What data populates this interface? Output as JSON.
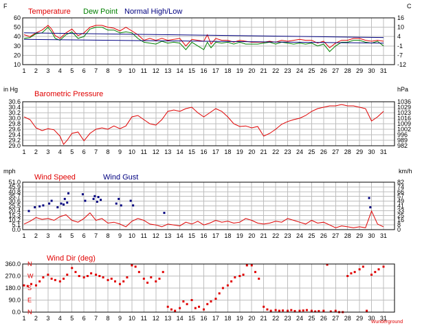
{
  "colors": {
    "red": "#e00000",
    "green": "#008000",
    "navy": "#000080",
    "blue": "#00007f"
  },
  "chart_data": [
    {
      "type": "line",
      "legend": [
        "Temperature",
        "Dew Point",
        "Normal High/Low"
      ],
      "ylabel_left": "F",
      "ylabel_right": "C",
      "yticks_left": [
        "60",
        "50",
        "40",
        "30",
        "20",
        "10"
      ],
      "yticks_right": [
        "16",
        "10",
        "4",
        "-1",
        "-7",
        "-12"
      ],
      "xticks": [
        "1",
        "2",
        "3",
        "4",
        "5",
        "6",
        "7",
        "8",
        "9",
        "10",
        "11",
        "12",
        "13",
        "14",
        "15",
        "16",
        "17",
        "18",
        "19",
        "20",
        "21",
        "22",
        "23",
        "24",
        "25",
        "26",
        "27",
        "28",
        "29",
        "30",
        "31"
      ],
      "ylim": [
        10,
        60
      ],
      "grid": true,
      "series": [
        {
          "name": "Temperature",
          "color": "#e00000",
          "x": [
            1,
            1.5,
            2,
            2.5,
            3,
            3.3,
            3.6,
            4,
            4.5,
            5,
            5.5,
            6,
            6.5,
            7,
            7.5,
            8,
            8.5,
            9,
            9.5,
            10,
            10.5,
            11,
            11.5,
            12,
            12.5,
            13,
            13.5,
            14,
            14.5,
            15,
            15.5,
            16,
            16.3,
            16.6,
            17,
            17.5,
            18,
            18.5,
            19,
            19.5,
            20,
            20.5,
            21,
            21.5,
            22,
            22.5,
            23,
            23.5,
            24,
            24.5,
            25,
            25.5,
            26,
            26.5,
            27,
            27.5,
            28,
            28.5,
            29,
            29.5,
            30,
            30.5,
            31
          ],
          "values": [
            42,
            40,
            44,
            47,
            52,
            48,
            41,
            38,
            44,
            48,
            41,
            44,
            50,
            52,
            52,
            50,
            49,
            46,
            50,
            46,
            42,
            36,
            38,
            36,
            38,
            36,
            37,
            38,
            30,
            37,
            36,
            35,
            42,
            32,
            38,
            36,
            36,
            34,
            36,
            35,
            34,
            34,
            34,
            35,
            34,
            36,
            35,
            36,
            37,
            36,
            36,
            33,
            35,
            28,
            33,
            36,
            36,
            38,
            38,
            36,
            35,
            36,
            35
          ]
        },
        {
          "name": "Dew Point",
          "color": "#008000",
          "x": [
            1,
            1.5,
            2,
            2.5,
            3,
            3.3,
            3.6,
            4,
            4.5,
            5,
            5.5,
            6,
            6.5,
            7,
            7.5,
            8,
            8.5,
            9,
            9.5,
            10,
            10.5,
            11,
            11.5,
            12,
            12.5,
            13,
            13.5,
            14,
            14.5,
            15,
            15.5,
            16,
            16.3,
            16.6,
            17,
            17.5,
            18,
            18.5,
            19,
            19.5,
            20,
            20.5,
            21,
            21.5,
            22,
            22.5,
            23,
            23.5,
            24,
            24.5,
            25,
            25.5,
            26,
            26.5,
            27,
            27.5,
            28,
            28.5,
            29,
            29.5,
            30,
            30.5,
            31
          ],
          "values": [
            38,
            39,
            43,
            44,
            50,
            45,
            38,
            36,
            42,
            45,
            38,
            40,
            48,
            50,
            50,
            47,
            47,
            44,
            45,
            44,
            38,
            34,
            33,
            32,
            35,
            33,
            34,
            33,
            26,
            34,
            30,
            26,
            34,
            28,
            34,
            33,
            34,
            32,
            34,
            32,
            32,
            32,
            33,
            34,
            32,
            34,
            33,
            32,
            33,
            32,
            33,
            30,
            32,
            24,
            30,
            34,
            34,
            36,
            36,
            34,
            33,
            35,
            30
          ]
        },
        {
          "name": "Normal High",
          "color": "#000080",
          "x": [
            1,
            31
          ],
          "values": [
            44,
            39
          ]
        },
        {
          "name": "Normal Low",
          "color": "#000080",
          "x": [
            1,
            31
          ],
          "values": [
            37,
            33
          ]
        }
      ]
    },
    {
      "type": "line",
      "title": "Barometric Pressure",
      "ylabel_left": "in Hg",
      "ylabel_right": "hPa",
      "yticks_left": [
        "30.6",
        "30.4",
        "30.2",
        "30.0",
        "29.8",
        "29.6",
        "29.4",
        "29.2",
        "29.0"
      ],
      "yticks_right": [
        "1036",
        "1029",
        "1023",
        "1016",
        "1009",
        "1002",
        "996",
        "989",
        "982"
      ],
      "xticks": [
        "1",
        "2",
        "3",
        "4",
        "5",
        "6",
        "7",
        "8",
        "9",
        "10",
        "11",
        "12",
        "13",
        "14",
        "15",
        "16",
        "17",
        "18",
        "19",
        "20",
        "21",
        "22",
        "23",
        "24",
        "25",
        "26",
        "27",
        "28",
        "29",
        "30",
        "31"
      ],
      "ylim": [
        29.0,
        30.6
      ],
      "grid": true,
      "series": [
        {
          "name": "Barometric Pressure",
          "color": "#e00000",
          "x": [
            1,
            1.5,
            2,
            2.5,
            3,
            3.5,
            4,
            4.3,
            4.6,
            5,
            5.5,
            6,
            6.5,
            7,
            7.5,
            8,
            8.5,
            9,
            9.5,
            10,
            10.5,
            11,
            11.5,
            12,
            12.5,
            13,
            13.5,
            14,
            14.5,
            15,
            15.5,
            16,
            16.5,
            17,
            17.5,
            18,
            18.5,
            19,
            19.5,
            20,
            20.5,
            21,
            21.5,
            22,
            22.5,
            23,
            23.5,
            24,
            24.5,
            25,
            25.5,
            26,
            26.5,
            27,
            27.5,
            28,
            28.5,
            29,
            29.5,
            30,
            30.5,
            31
          ],
          "values": [
            30.05,
            29.95,
            29.65,
            29.55,
            29.62,
            29.58,
            29.35,
            29.05,
            29.2,
            29.45,
            29.5,
            29.18,
            29.45,
            29.6,
            29.65,
            29.6,
            29.72,
            29.62,
            29.72,
            30.05,
            30.1,
            29.95,
            29.8,
            29.75,
            29.95,
            30.25,
            30.3,
            30.25,
            30.35,
            30.4,
            30.2,
            30.05,
            30.2,
            30.35,
            30.25,
            30.05,
            29.8,
            29.7,
            29.72,
            29.65,
            29.7,
            29.35,
            29.45,
            29.6,
            29.78,
            29.88,
            29.95,
            30.0,
            30.1,
            30.25,
            30.35,
            30.4,
            30.45,
            30.45,
            30.5,
            30.45,
            30.45,
            30.4,
            30.35,
            29.9,
            30.05,
            30.25
          ]
        }
      ]
    },
    {
      "type": "scatter",
      "title": "Wind Speed",
      "legend": [
        "Wind Speed",
        "Wind Gust"
      ],
      "ylabel_left": "mph",
      "ylabel_right": "km/h",
      "yticks_left": [
        "51.0",
        "45.9",
        "40.8",
        "35.7",
        "30.6",
        "25.5",
        "20.4",
        "15.3",
        "10.2",
        "5.1",
        "0.0"
      ],
      "yticks_right": [
        "82",
        "74",
        "66",
        "57",
        "49",
        "41",
        "33",
        "25",
        "16",
        "8",
        "0"
      ],
      "xticks": [
        "1",
        "2",
        "3",
        "4",
        "5",
        "6",
        "7",
        "8",
        "9",
        "10",
        "11",
        "12",
        "13",
        "14",
        "15",
        "16",
        "17",
        "18",
        "19",
        "20",
        "21",
        "22",
        "23",
        "24",
        "25",
        "26",
        "27",
        "28",
        "29",
        "30",
        "31"
      ],
      "ylim": [
        0,
        51
      ],
      "grid": true,
      "series": [
        {
          "name": "Wind Speed",
          "color": "#e00000",
          "x": [
            1,
            1.5,
            2,
            2.5,
            3,
            3.5,
            4,
            4.5,
            5,
            5.5,
            6,
            6.5,
            7,
            7.5,
            8,
            8.5,
            9,
            9.5,
            10,
            10.5,
            11,
            11.5,
            12,
            12.5,
            13,
            13.5,
            14,
            14.5,
            15,
            15.5,
            16,
            16.5,
            17,
            17.5,
            18,
            18.5,
            19,
            19.5,
            20,
            20.5,
            21,
            21.5,
            22,
            22.5,
            23,
            23.5,
            24,
            24.5,
            25,
            25.5,
            26,
            26.5,
            27,
            27.5,
            28,
            28.5,
            29,
            29.5,
            30,
            30.5,
            31
          ],
          "values": [
            6,
            9,
            13,
            11,
            12,
            10,
            14,
            16,
            10,
            8,
            12,
            18,
            10,
            12,
            7,
            8,
            6,
            3,
            9,
            12,
            10,
            6,
            5,
            3,
            6,
            5,
            4,
            8,
            6,
            9,
            5,
            7,
            10,
            8,
            9,
            7,
            8,
            12,
            10,
            7,
            6,
            7,
            9,
            8,
            12,
            10,
            8,
            6,
            10,
            7,
            8,
            5,
            2,
            4,
            3,
            2,
            3,
            2,
            20,
            6,
            3
          ]
        },
        {
          "name": "Wind Gust",
          "color": "#00007f",
          "x": [
            1.4,
            1.9,
            2.3,
            2.6,
            3.1,
            3.3,
            3.8,
            4.1,
            4.3,
            4.4,
            4.6,
            4.7,
            5.9,
            6.1,
            6.8,
            6.9,
            7.1,
            7.2,
            7.4,
            8.7,
            8.9,
            9.1,
            9.9,
            10.1,
            12.7,
            29.8,
            29.9
          ],
          "values": [
            20,
            24,
            25,
            26,
            28,
            31,
            24,
            28,
            27,
            33,
            29,
            39,
            38,
            31,
            33,
            36,
            30,
            35,
            32,
            28,
            33,
            26,
            31,
            26,
            18,
            34,
            24
          ]
        }
      ]
    },
    {
      "type": "scatter",
      "title": "Wind Dir (deg)",
      "yticks_left": [
        "360.0",
        "270.0",
        "180.0",
        "90.0",
        "0.0"
      ],
      "dir_labels": [
        "N",
        "W",
        "S",
        "E",
        "N"
      ],
      "xticks": [
        "1",
        "2",
        "3",
        "4",
        "5",
        "6",
        "7",
        "8",
        "9",
        "10",
        "11",
        "12",
        "13",
        "14",
        "15",
        "16",
        "17",
        "18",
        "19",
        "20",
        "21",
        "22",
        "23",
        "24",
        "25",
        "26",
        "27",
        "28",
        "29",
        "30",
        "31"
      ],
      "footer": "Wunderground",
      "ylim": [
        0,
        360
      ],
      "grid": true,
      "series": [
        {
          "name": "Wind Dir",
          "color": "#e00000",
          "x": [
            1,
            1.3,
            1.6,
            2,
            2.3,
            2.6,
            3,
            3.3,
            3.6,
            4,
            4.3,
            4.6,
            5,
            5.3,
            5.6,
            6,
            6.3,
            6.6,
            7,
            7.3,
            7.6,
            8,
            8.3,
            8.6,
            9,
            9.3,
            9.6,
            10,
            10.3,
            10.6,
            11,
            11.3,
            11.6,
            12,
            12.3,
            12.6,
            13,
            13.3,
            13.6,
            14,
            14.3,
            14.6,
            15,
            15.3,
            15.6,
            16,
            16.3,
            16.6,
            17,
            17.3,
            17.6,
            18,
            18.3,
            18.6,
            19,
            19.3,
            19.6,
            20,
            20.3,
            20.6,
            21,
            21.3,
            21.6,
            22,
            22.3,
            22.6,
            23,
            23.3,
            23.6,
            24,
            24.3,
            24.6,
            25,
            25.3,
            25.6,
            26,
            26.3,
            26.6,
            27,
            27.3,
            27.6,
            28,
            28.3,
            28.6,
            29,
            29.3,
            29.6,
            30,
            30.3,
            30.6,
            31
          ],
          "values": [
            200,
            195,
            210,
            200,
            230,
            260,
            280,
            250,
            240,
            230,
            250,
            280,
            330,
            300,
            270,
            260,
            270,
            290,
            280,
            270,
            260,
            240,
            250,
            230,
            210,
            230,
            260,
            350,
            340,
            300,
            250,
            220,
            260,
            230,
            250,
            300,
            40,
            20,
            10,
            30,
            80,
            60,
            90,
            30,
            40,
            20,
            60,
            80,
            100,
            140,
            180,
            200,
            230,
            260,
            270,
            280,
            350,
            350,
            300,
            250,
            40,
            20,
            10,
            15,
            10,
            12,
            10,
            15,
            8,
            10,
            12,
            15,
            10,
            5,
            8,
            10,
            355,
            5,
            10,
            0,
            0,
            270,
            290,
            300,
            320,
            340,
            10,
            280,
            300,
            320,
            340
          ]
        }
      ]
    }
  ]
}
